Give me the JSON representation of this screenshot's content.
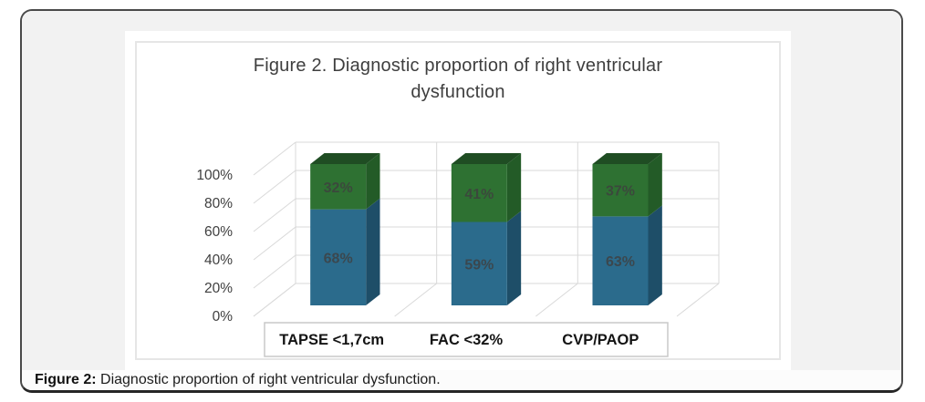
{
  "caption": {
    "label": "Figure 2:",
    "text": " Diagnostic proportion of right ventricular dysfunction."
  },
  "chart_data": {
    "type": "bar",
    "variant": "3d-100-percent-stacked-column",
    "title": "Figure 2. Diagnostic proportion of right ventricular dysfunction",
    "title_lines": [
      "Figure 2. Diagnostic proportion of right ventricular",
      "dysfunction"
    ],
    "categories": [
      "TAPSE <1,7cm",
      "FAC <32%",
      "CVP/PAOP"
    ],
    "series": [
      {
        "name": "bottom",
        "values": [
          68,
          59,
          63
        ],
        "front_color": "#2B6B8C",
        "side_color": "#1E4E68"
      },
      {
        "name": "top",
        "values": [
          32,
          41,
          37
        ],
        "front_color": "#2E7132",
        "side_color": "#235B27",
        "top_color": "#1F4D23"
      }
    ],
    "data_labels": [
      "68%",
      "32%",
      "59%",
      "41%",
      "63%",
      "37%"
    ],
    "value_suffix": "%",
    "yticks": [
      "0%",
      "20%",
      "40%",
      "60%",
      "80%",
      "100%"
    ],
    "ylim": [
      0,
      100
    ],
    "tick_step": 20,
    "grid": true,
    "legend": "none",
    "colors": {
      "grid": "#d9d9d9",
      "axis_text": "#3f3f3f",
      "data_label": "#3f3f3f",
      "category_text": "#141414",
      "category_box_border": "#c8c8c8",
      "title_text": "#3e3e3e",
      "panel_bg": "#ffffff",
      "figure_bg": "#f2f2f2"
    }
  }
}
